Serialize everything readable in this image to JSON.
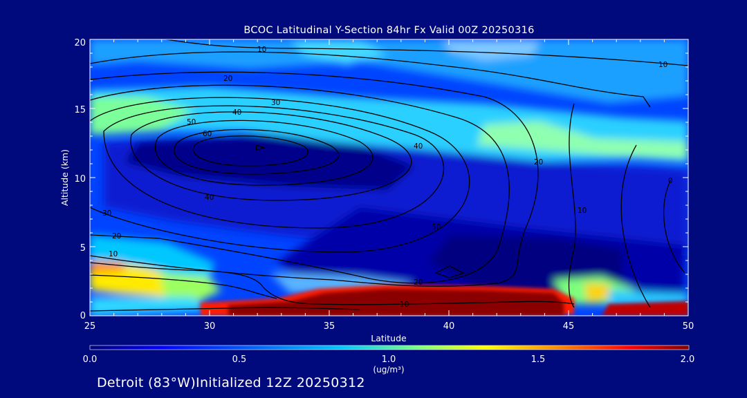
{
  "chart_data": {
    "type": "heatmap",
    "title": "BCOC Latitudinal Y-Section 84hr  Fx Valid 00Z 20250316",
    "xlabel": "Latitude",
    "ylabel": "Altitude (km)",
    "xlim": [
      25,
      50
    ],
    "ylim": [
      0,
      20
    ],
    "x_ticks": [
      "25",
      "30",
      "35",
      "40",
      "45",
      "50"
    ],
    "y_ticks": [
      "0",
      "5",
      "10",
      "15",
      "20"
    ],
    "colorbar": {
      "range": [
        0.0,
        2.0
      ],
      "ticks": [
        "0.0",
        "0.5",
        "1.0",
        "1.5",
        "2.0"
      ],
      "units": "(ug/m³)",
      "colors": [
        "#00007a",
        "#0000ff",
        "#0066ff",
        "#00c8ff",
        "#7dff7d",
        "#ffff00",
        "#ff8a00",
        "#ff0000",
        "#800000"
      ]
    },
    "contour_levels": [
      10,
      20,
      30,
      40,
      50,
      60
    ],
    "contour_labels": [
      "10",
      "20",
      "30",
      "40",
      "50",
      "60",
      "40",
      "30",
      "20",
      "10",
      "40",
      "50",
      "20",
      "10",
      "10",
      "20",
      "10",
      "0"
    ],
    "concentration_features": [
      {
        "lat": [
          25,
          34
        ],
        "alt": [
          0,
          4
        ],
        "level": "0.9-1.3"
      },
      {
        "lat": [
          28,
          50
        ],
        "alt": [
          0,
          2
        ],
        "level": "2.0"
      },
      {
        "lat": [
          25,
          50
        ],
        "alt": [
          11,
          17
        ],
        "level": "0.6-1.0"
      }
    ]
  },
  "footer": "Detroit (83°W)Initialized 12Z 20250312"
}
